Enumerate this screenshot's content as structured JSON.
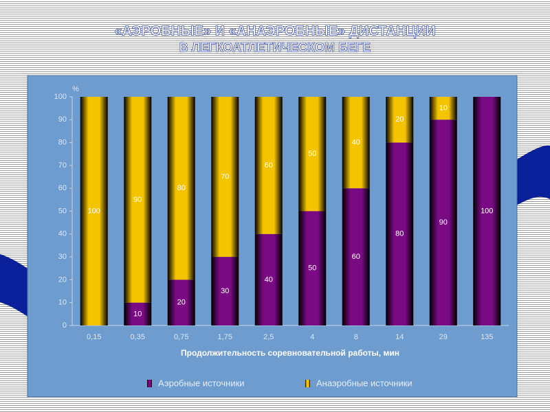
{
  "chart_data": {
    "type": "stacked_bar",
    "title": "«АЭРОБНЫЕ» И «АНАЭРОБНЫЕ» ДИСТАНЦИИ",
    "subtitle": "В ЛЕГКОАТЛЕТИЧЕСКОМ БЕГЕ",
    "ylabel": "%",
    "xlabel": "Продолжительность соревновательной работы, мин",
    "categories": [
      "0,15",
      "0,35",
      "0,75",
      "1,75",
      "2,5",
      "4",
      "8",
      "14",
      "29",
      "135"
    ],
    "ylim": [
      0,
      100
    ],
    "yticks": [
      0,
      10,
      20,
      30,
      40,
      50,
      60,
      70,
      80,
      90,
      100
    ],
    "series": [
      {
        "name": "Аэробные источники",
        "color": "#7a0a84",
        "values": [
          0,
          10,
          20,
          30,
          40,
          50,
          60,
          80,
          90,
          100
        ]
      },
      {
        "name": "Анаэробные источники",
        "color": "#f5c400",
        "values": [
          100,
          90,
          80,
          70,
          60,
          50,
          40,
          20,
          10,
          0
        ]
      }
    ]
  }
}
